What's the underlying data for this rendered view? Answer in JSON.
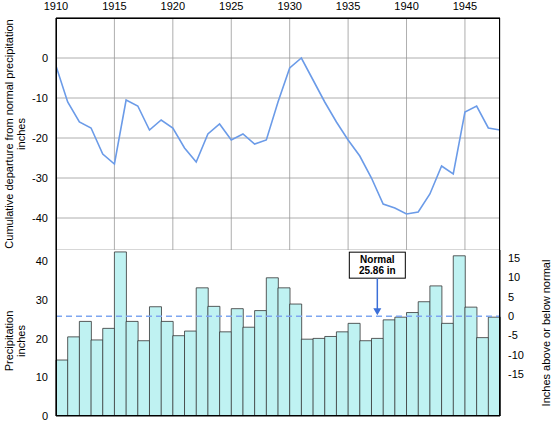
{
  "chart_data": [
    {
      "type": "line",
      "x": [
        1910,
        1911,
        1912,
        1913,
        1914,
        1915,
        1916,
        1917,
        1918,
        1919,
        1920,
        1921,
        1922,
        1923,
        1924,
        1925,
        1926,
        1927,
        1928,
        1929,
        1930,
        1931,
        1932,
        1933,
        1934,
        1935,
        1936,
        1937,
        1938,
        1939,
        1940,
        1941,
        1942,
        1943,
        1944,
        1945,
        1946,
        1947,
        1948
      ],
      "values": [
        -2,
        -11,
        -16,
        -17.5,
        -24,
        -26.5,
        -10.5,
        -12,
        -18,
        -15.5,
        -17.5,
        -22.5,
        -26,
        -19,
        -16.5,
        -20.5,
        -19,
        -21.5,
        -20.5,
        -11,
        -2.5,
        0,
        -5.5,
        -11,
        -16,
        -20.5,
        -24.5,
        -30,
        -36.5,
        -37.5,
        -39,
        -38.5,
        -34,
        -27,
        -29,
        -13.5,
        -12,
        -17.5,
        -18
      ],
      "color": "#6b9be8",
      "xlim": [
        1910,
        1948
      ],
      "xticks": [
        1910,
        1915,
        1920,
        1925,
        1930,
        1935,
        1940,
        1945
      ],
      "ylim": [
        -48,
        10
      ],
      "yticks": [
        0,
        -10,
        -20,
        -30,
        -40
      ],
      "ylabel": "Cumulative departure from normal precipitation inches",
      "grid": true
    },
    {
      "type": "bar",
      "x": [
        1910,
        1911,
        1912,
        1913,
        1914,
        1915,
        1916,
        1917,
        1918,
        1919,
        1920,
        1921,
        1922,
        1923,
        1924,
        1925,
        1926,
        1927,
        1928,
        1929,
        1930,
        1931,
        1932,
        1933,
        1934,
        1935,
        1936,
        1937,
        1938,
        1939,
        1940,
        1941,
        1942,
        1943,
        1944,
        1945,
        1946,
        1947
      ],
      "values": [
        14.5,
        20.5,
        24.5,
        19.7,
        22.7,
        42.5,
        24.5,
        19.5,
        28.3,
        24.5,
        20.8,
        22,
        33.2,
        28.4,
        21.8,
        27.8,
        23,
        27.3,
        35.8,
        33.2,
        29,
        19.9,
        20.1,
        20.6,
        21.8,
        24,
        19.5,
        20.1,
        24.9,
        25.6,
        26.8,
        29.6,
        33.7,
        24,
        41.5,
        28.2,
        20.3,
        25.6
      ],
      "color": "#bff2f2",
      "ylim": [
        0,
        43
      ],
      "yticks": [
        0,
        10,
        20,
        30,
        40
      ],
      "y2lim": [
        -25.86,
        17.14
      ],
      "y2ticks": [
        15,
        10,
        5,
        0,
        -5,
        -10,
        -15
      ],
      "ylabel": "Precipitation inches",
      "y2label": "Inches above or below normal",
      "annotation": {
        "text": "Normal",
        "label": "25.86 in",
        "value": 25.86,
        "x": 1937
      },
      "tick_labels": "y",
      "grid": false
    }
  ]
}
